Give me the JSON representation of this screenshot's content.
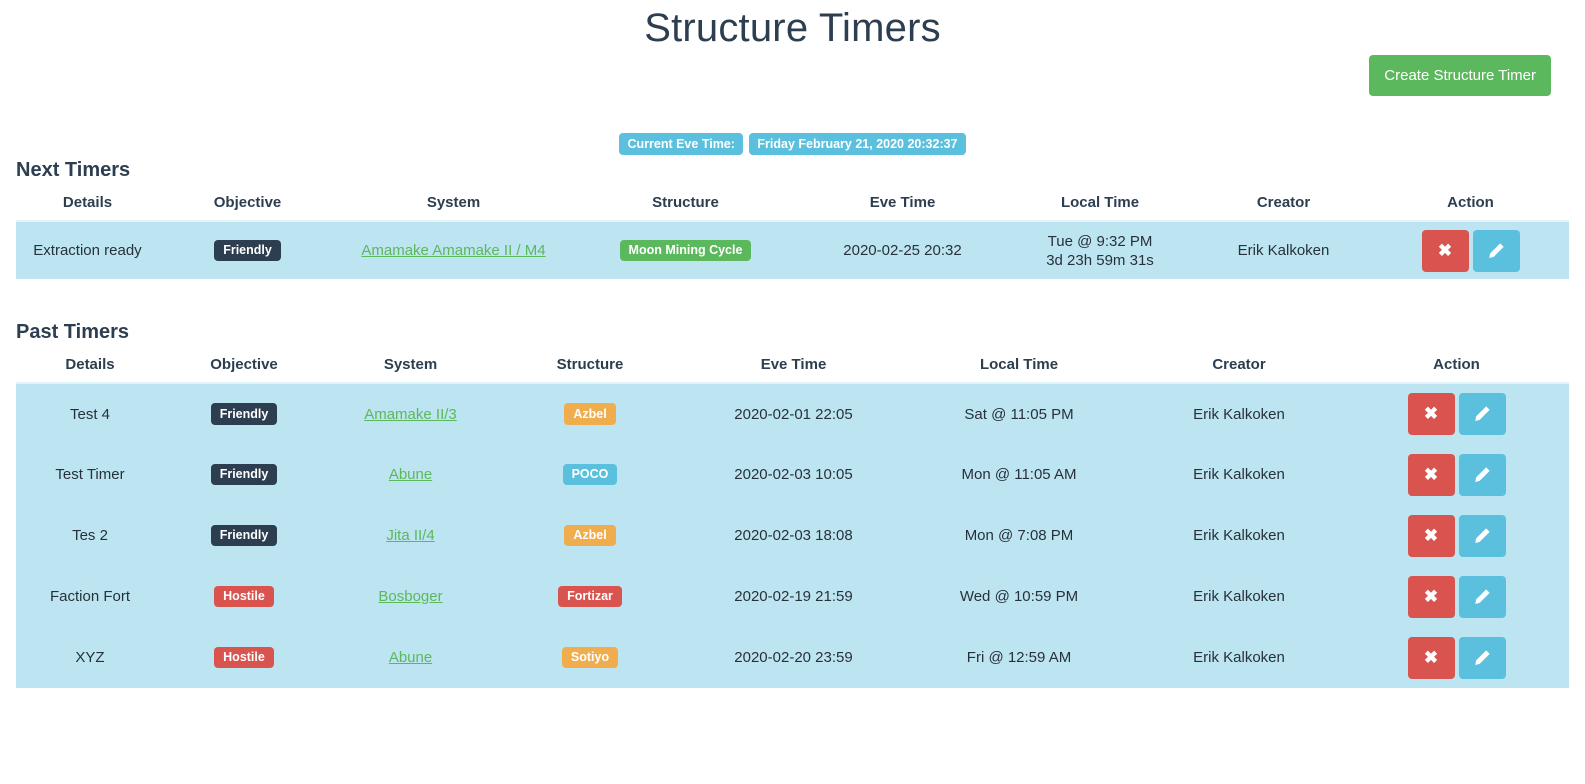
{
  "page": {
    "title": "Structure Timers"
  },
  "toolbar": {
    "create_button": "Create Structure Timer"
  },
  "eve_clock": {
    "label": "Current Eve Time:",
    "value": "Friday February 21, 2020 20:32:37"
  },
  "icons": {
    "delete": "✖",
    "edit": "pencil-icon"
  },
  "colors": {
    "success": "#5cb85c",
    "info": "#5bc0de",
    "danger": "#d9534f",
    "warning": "#f0ad4e",
    "dark": "#2c3e50",
    "row_background": "#bde5f1"
  },
  "columns": [
    "Details",
    "Objective",
    "System",
    "Structure",
    "Eve Time",
    "Local Time",
    "Creator",
    "Action"
  ],
  "next_timers": {
    "heading": "Next Timers",
    "rows": [
      {
        "details": "Extraction ready",
        "objective": "Friendly",
        "objective_style": "dark",
        "system": "Amamake Amamake II / M4",
        "structure": "Moon Mining Cycle",
        "structure_style": "success",
        "eve_time": "2020-02-25 20:32",
        "local_time": "Tue @ 9:32 PM",
        "countdown": "3d 23h 59m 31s",
        "creator": "Erik Kalkoken"
      }
    ]
  },
  "past_timers": {
    "heading": "Past Timers",
    "rows": [
      {
        "details": "Test 4",
        "objective": "Friendly",
        "objective_style": "dark",
        "system": "Amamake II/3",
        "structure": "Azbel",
        "structure_style": "warning",
        "eve_time": "2020-02-01 22:05",
        "local_time": "Sat @ 11:05 PM",
        "creator": "Erik Kalkoken"
      },
      {
        "details": "Test Timer",
        "objective": "Friendly",
        "objective_style": "dark",
        "system": "Abune",
        "structure": "POCO",
        "structure_style": "info",
        "eve_time": "2020-02-03 10:05",
        "local_time": "Mon @ 11:05 AM",
        "creator": "Erik Kalkoken"
      },
      {
        "details": "Tes 2",
        "objective": "Friendly",
        "objective_style": "dark",
        "system": "Jita II/4",
        "structure": "Azbel",
        "structure_style": "warning",
        "eve_time": "2020-02-03 18:08",
        "local_time": "Mon @ 7:08 PM",
        "creator": "Erik Kalkoken"
      },
      {
        "details": "Faction Fort",
        "objective": "Hostile",
        "objective_style": "danger",
        "system": "Bosboger",
        "structure": "Fortizar",
        "structure_style": "danger",
        "eve_time": "2020-02-19 21:59",
        "local_time": "Wed @ 10:59 PM",
        "creator": "Erik Kalkoken"
      },
      {
        "details": "XYZ",
        "objective": "Hostile",
        "objective_style": "danger",
        "system": "Abune",
        "structure": "Sotiyo",
        "structure_style": "warning",
        "eve_time": "2020-02-20 23:59",
        "local_time": "Fri @ 12:59 AM",
        "creator": "Erik Kalkoken"
      }
    ]
  }
}
